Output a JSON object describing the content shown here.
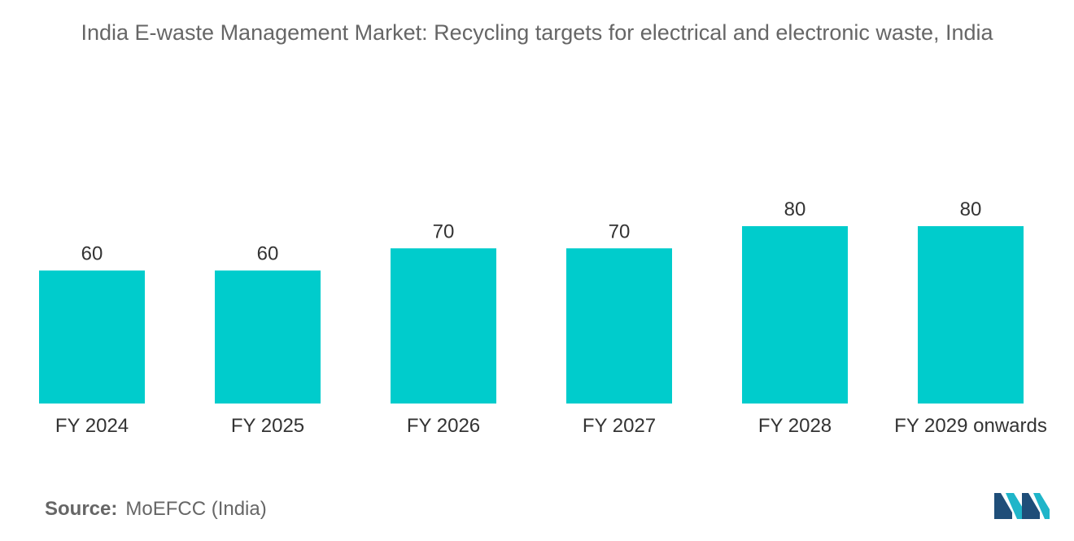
{
  "chart_data": {
    "type": "bar",
    "title": "India E-waste Management Market: Recycling targets for electrical and electronic waste, India",
    "categories": [
      "FY 2024",
      "FY 2025",
      "FY 2026",
      "FY 2027",
      "FY 2028",
      "FY 2029 onwards"
    ],
    "values": [
      60,
      60,
      70,
      70,
      80,
      80
    ],
    "xlabel": "",
    "ylabel": "",
    "ylim": [
      0,
      80
    ],
    "grid": false,
    "bar_color": "#00CCCC"
  },
  "source": {
    "label": "Source:",
    "value": "MoEFCC (India)"
  },
  "colors": {
    "title": "#666666",
    "text": "#333333",
    "logo_dark": "#1F4E79",
    "logo_light": "#1FB5C9"
  }
}
